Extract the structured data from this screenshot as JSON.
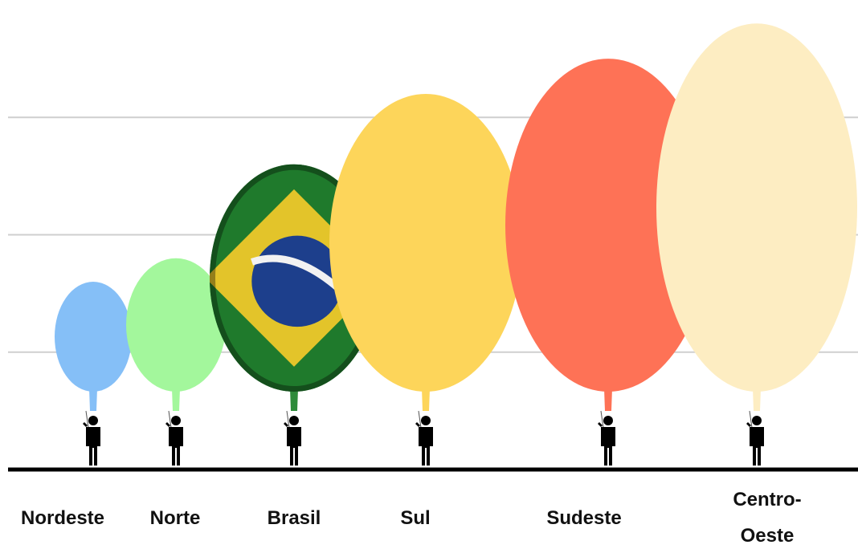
{
  "chart_data": {
    "type": "balloon",
    "categories": [
      "Nordeste",
      "Norte",
      "Brasil",
      "Sul",
      "Sudeste",
      "Centro-Oeste"
    ],
    "values": [
      1.6,
      1.8,
      2.6,
      3.2,
      3.5,
      3.8
    ],
    "colors": [
      "#85bff7",
      "#a3f79c",
      "#2e8b3a",
      "#fdd55a",
      "#fe7256",
      "#fdedc2"
    ],
    "flag": "Brasil",
    "ylim": [
      0,
      4
    ],
    "yticks": [
      1,
      2,
      3
    ],
    "grid": true
  }
}
